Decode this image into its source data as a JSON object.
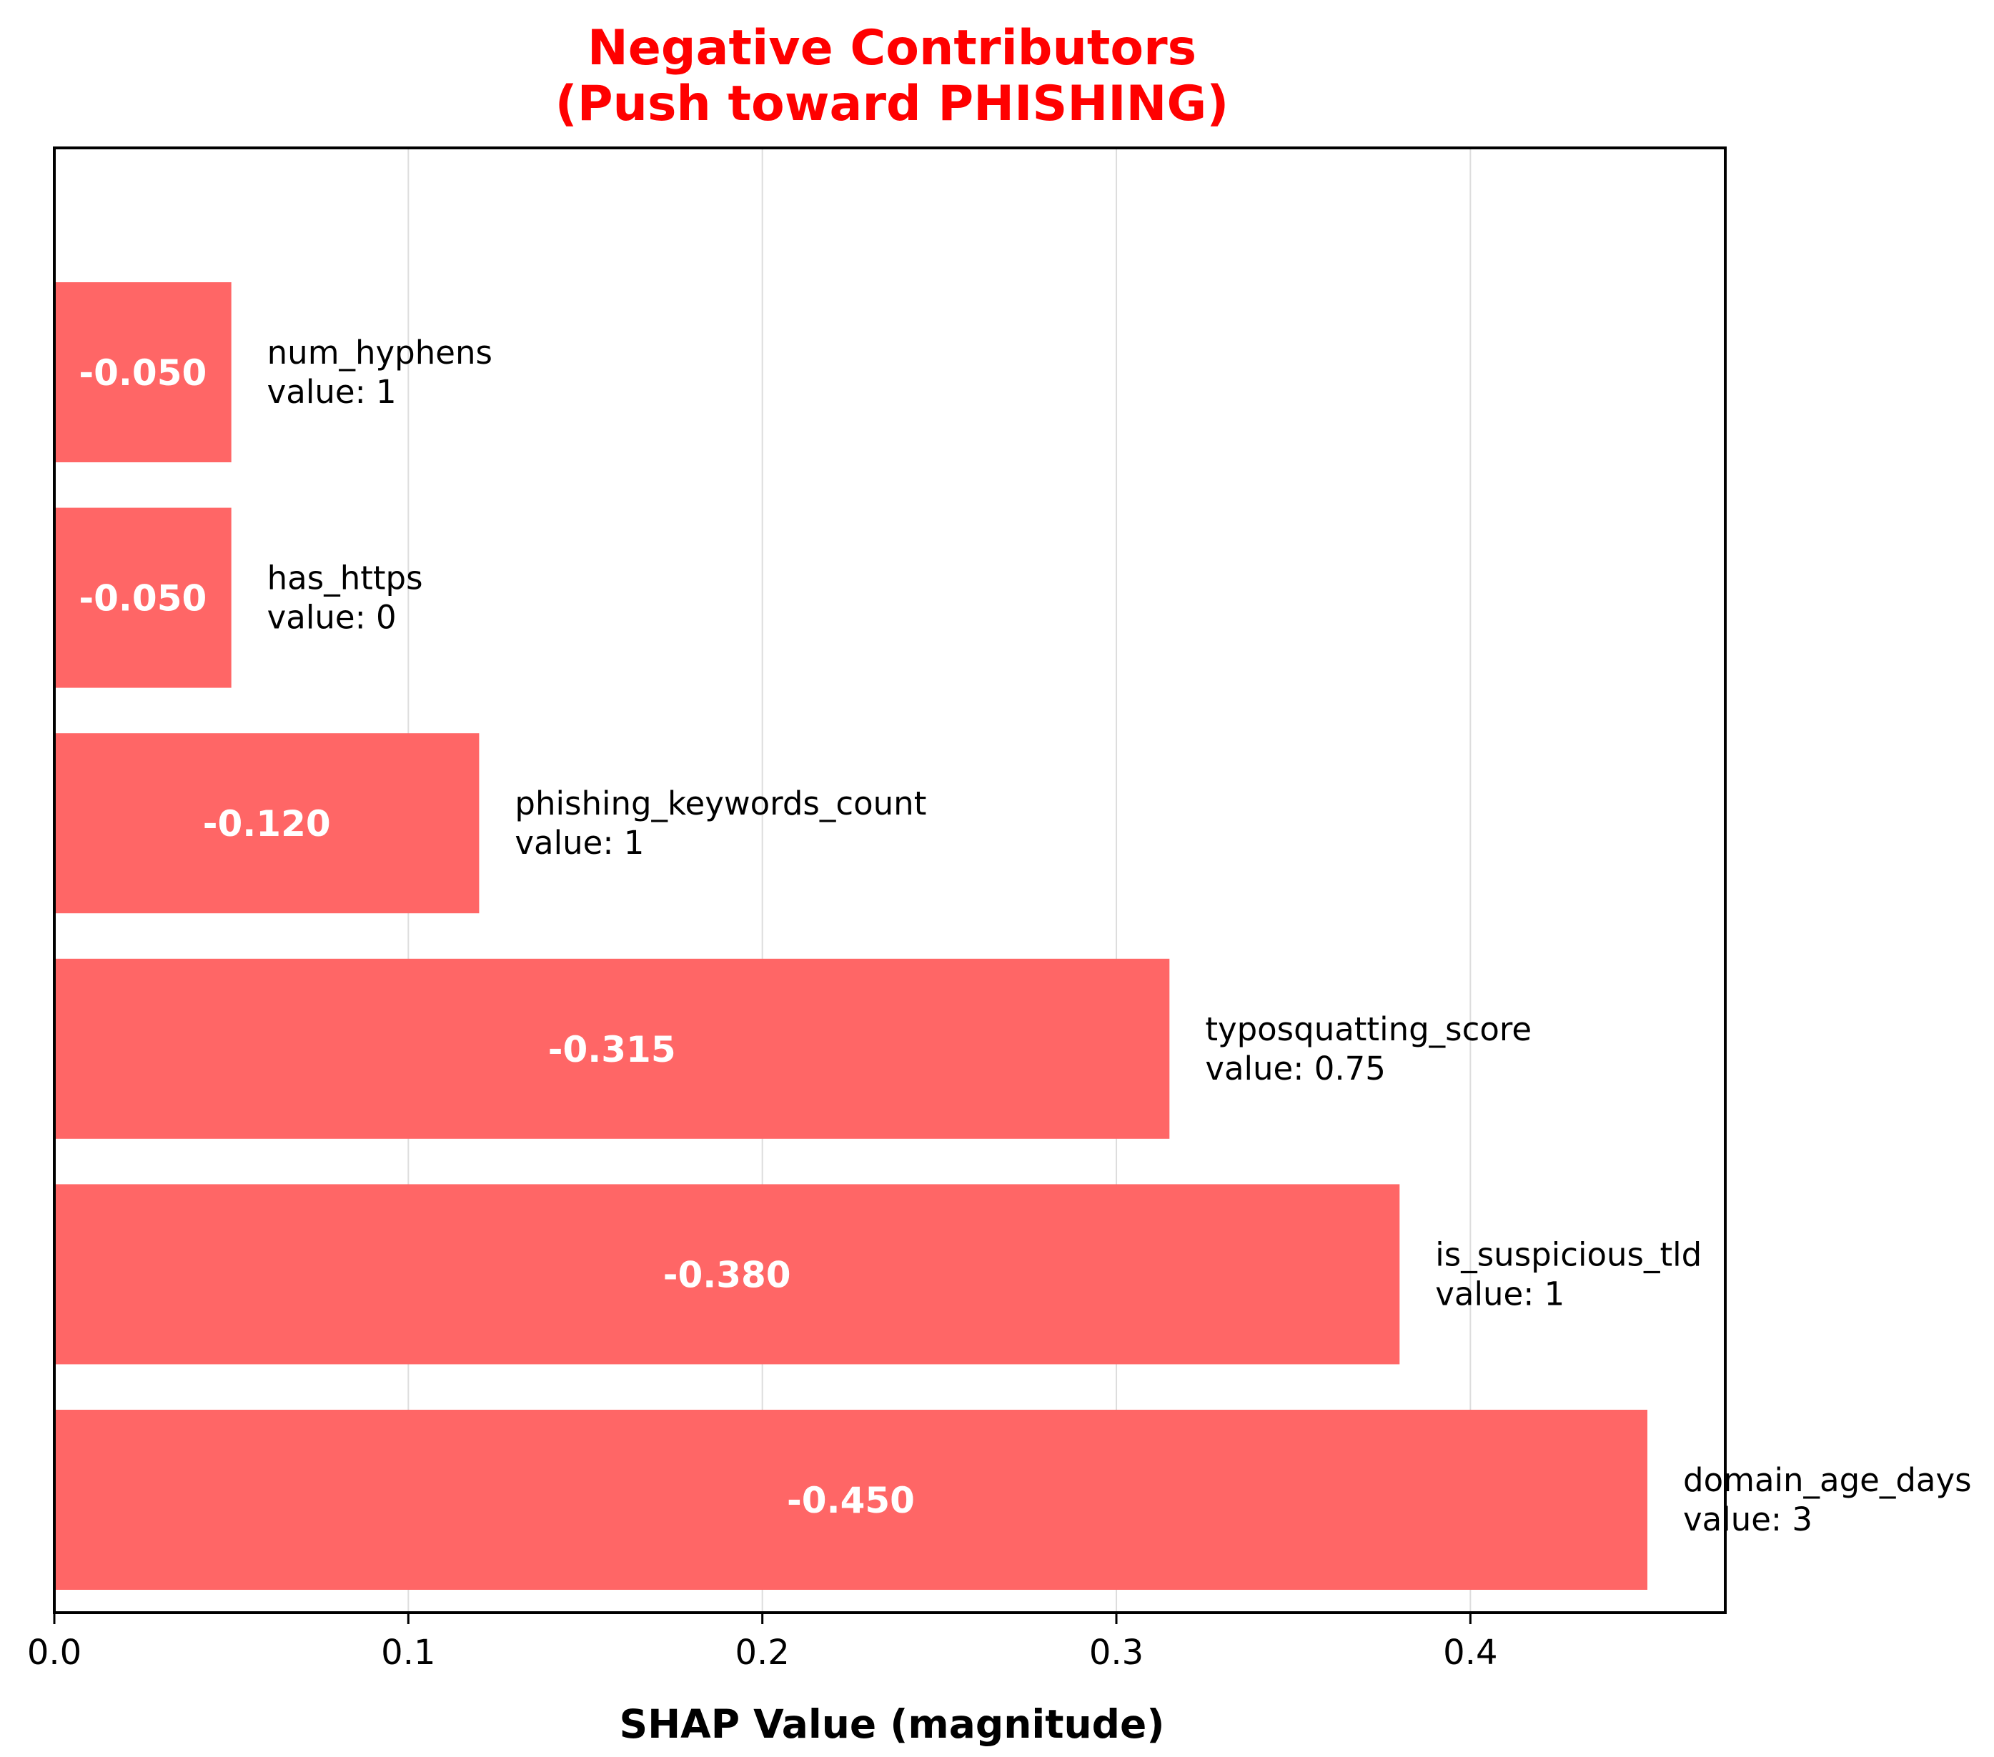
{
  "chart_data": {
    "type": "bar",
    "orientation": "horizontal",
    "title_line1": "Negative Contributors",
    "title_line2": "(Push toward PHISHING)",
    "xlabel": "SHAP Value (magnitude)",
    "ylabel": "",
    "xlim": [
      0,
      0.472
    ],
    "xticks": [
      {
        "value": 0.0,
        "label": "0.0"
      },
      {
        "value": 0.1,
        "label": "0.1"
      },
      {
        "value": 0.2,
        "label": "0.2"
      },
      {
        "value": 0.3,
        "label": "0.3"
      },
      {
        "value": 0.4,
        "label": "0.4"
      }
    ],
    "grid": "vertical",
    "bar_color": "#ff6666",
    "title_color": "#ff0000",
    "bars": [
      {
        "feature": "domain_age_days",
        "magnitude": 0.45,
        "label": "-0.450",
        "value_text": "value: 3"
      },
      {
        "feature": "is_suspicious_tld",
        "magnitude": 0.38,
        "label": "-0.380",
        "value_text": "value: 1"
      },
      {
        "feature": "typosquatting_score",
        "magnitude": 0.315,
        "label": "-0.315",
        "value_text": "value: 0.75"
      },
      {
        "feature": "phishing_keywords_count",
        "magnitude": 0.12,
        "label": "-0.120",
        "value_text": "value: 1"
      },
      {
        "feature": "has_https",
        "magnitude": 0.05,
        "label": "-0.050",
        "value_text": "value: 0"
      },
      {
        "feature": "num_hyphens",
        "magnitude": 0.05,
        "label": "-0.050",
        "value_text": "value: 1"
      }
    ]
  }
}
